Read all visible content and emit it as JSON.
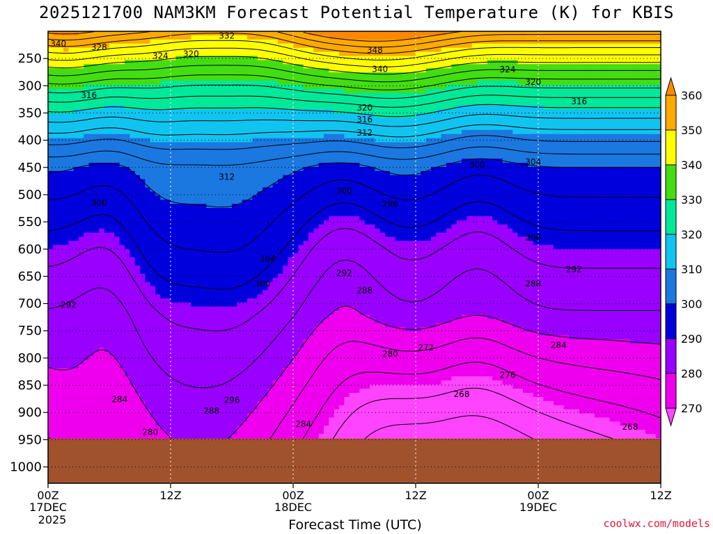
{
  "chart_data": {
    "type": "heatmap",
    "title": "2025121700 NAM3KM Forecast Potential Temperature (K) for KBIS",
    "xlabel": "Forecast Time (UTC)",
    "ylabel": "",
    "year_label": "2025",
    "credit": "coolwx.com/models",
    "x_ticks": [
      {
        "line1": "00Z",
        "line2": "17DEC",
        "hour": 0
      },
      {
        "line1": "12Z",
        "line2": "",
        "hour": 12
      },
      {
        "line1": "00Z",
        "line2": "18DEC",
        "hour": 24
      },
      {
        "line1": "12Z",
        "line2": "",
        "hour": 36
      },
      {
        "line1": "00Z",
        "line2": "19DEC",
        "hour": 48
      },
      {
        "line1": "12Z",
        "line2": "",
        "hour": 60
      }
    ],
    "xlim_hours": [
      0,
      60
    ],
    "y_axis": "pressure (hPa), inverted",
    "y_ticks": [
      250,
      300,
      350,
      400,
      450,
      500,
      550,
      600,
      650,
      700,
      750,
      800,
      850,
      900,
      950,
      1000
    ],
    "ylim": [
      200,
      1030
    ],
    "grid": true,
    "colorbar": {
      "labels": [
        "270",
        "280",
        "290",
        "300",
        "310",
        "320",
        "330",
        "340",
        "350",
        "360"
      ],
      "bins": [
        {
          "from": 260,
          "to": 270,
          "color": "#ff44ff"
        },
        {
          "from": 270,
          "to": 280,
          "color": "#ee00ee"
        },
        {
          "from": 280,
          "to": 290,
          "color": "#9900ff"
        },
        {
          "from": 290,
          "to": 300,
          "color": "#0000dd"
        },
        {
          "from": 300,
          "to": 310,
          "color": "#1a78e0"
        },
        {
          "from": 310,
          "to": 320,
          "color": "#11c4f0"
        },
        {
          "from": 320,
          "to": 330,
          "color": "#00e89a"
        },
        {
          "from": 330,
          "to": 340,
          "color": "#44dd11"
        },
        {
          "from": 340,
          "to": 350,
          "color": "#ffff00"
        },
        {
          "from": 350,
          "to": 360,
          "color": "#ffaa00"
        },
        {
          "from": 360,
          "to": 370,
          "color": "#ff8800"
        }
      ]
    },
    "ground_color": "#a0522d",
    "ground_top_pressure": 948,
    "contour_labels": [
      {
        "text": "332",
        "hour": 17.5,
        "p": 207
      },
      {
        "text": "340",
        "hour": 1.0,
        "p": 222
      },
      {
        "text": "328",
        "hour": 5.0,
        "p": 228
      },
      {
        "text": "324",
        "hour": 11.0,
        "p": 244
      },
      {
        "text": "320",
        "hour": 14.0,
        "p": 240
      },
      {
        "text": "348",
        "hour": 32.0,
        "p": 233
      },
      {
        "text": "340",
        "hour": 32.5,
        "p": 268
      },
      {
        "text": "324",
        "hour": 45.0,
        "p": 269
      },
      {
        "text": "320",
        "hour": 47.5,
        "p": 292
      },
      {
        "text": "316",
        "hour": 52.0,
        "p": 328
      },
      {
        "text": "316",
        "hour": 4.0,
        "p": 316
      },
      {
        "text": "320",
        "hour": 31.0,
        "p": 339
      },
      {
        "text": "316",
        "hour": 31.0,
        "p": 361
      },
      {
        "text": "312",
        "hour": 31.0,
        "p": 385
      },
      {
        "text": "312",
        "hour": 17.5,
        "p": 466
      },
      {
        "text": "300",
        "hour": 42.0,
        "p": 444
      },
      {
        "text": "304",
        "hour": 47.5,
        "p": 439
      },
      {
        "text": "300",
        "hour": 29.0,
        "p": 492
      },
      {
        "text": "296",
        "hour": 33.5,
        "p": 516
      },
      {
        "text": "300",
        "hour": 5.0,
        "p": 514
      },
      {
        "text": "296",
        "hour": 47.5,
        "p": 578
      },
      {
        "text": "304",
        "hour": 21.5,
        "p": 617
      },
      {
        "text": "300",
        "hour": 21.0,
        "p": 662
      },
      {
        "text": "292",
        "hour": 2.0,
        "p": 701
      },
      {
        "text": "292",
        "hour": 29.0,
        "p": 643
      },
      {
        "text": "288",
        "hour": 31.0,
        "p": 675
      },
      {
        "text": "292",
        "hour": 51.5,
        "p": 636
      },
      {
        "text": "288",
        "hour": 47.5,
        "p": 662
      },
      {
        "text": "284",
        "hour": 50.0,
        "p": 775
      },
      {
        "text": "280",
        "hour": 33.5,
        "p": 791
      },
      {
        "text": "272",
        "hour": 37.0,
        "p": 780
      },
      {
        "text": "276",
        "hour": 45.0,
        "p": 830
      },
      {
        "text": "268",
        "hour": 40.5,
        "p": 865
      },
      {
        "text": "284",
        "hour": 7.0,
        "p": 875
      },
      {
        "text": "288",
        "hour": 16.0,
        "p": 896
      },
      {
        "text": "296",
        "hour": 18.0,
        "p": 876
      },
      {
        "text": "280",
        "hour": 10.0,
        "p": 935
      },
      {
        "text": "284",
        "hour": 25.0,
        "p": 920
      },
      {
        "text": "268",
        "hour": 57.0,
        "p": 925
      }
    ]
  }
}
